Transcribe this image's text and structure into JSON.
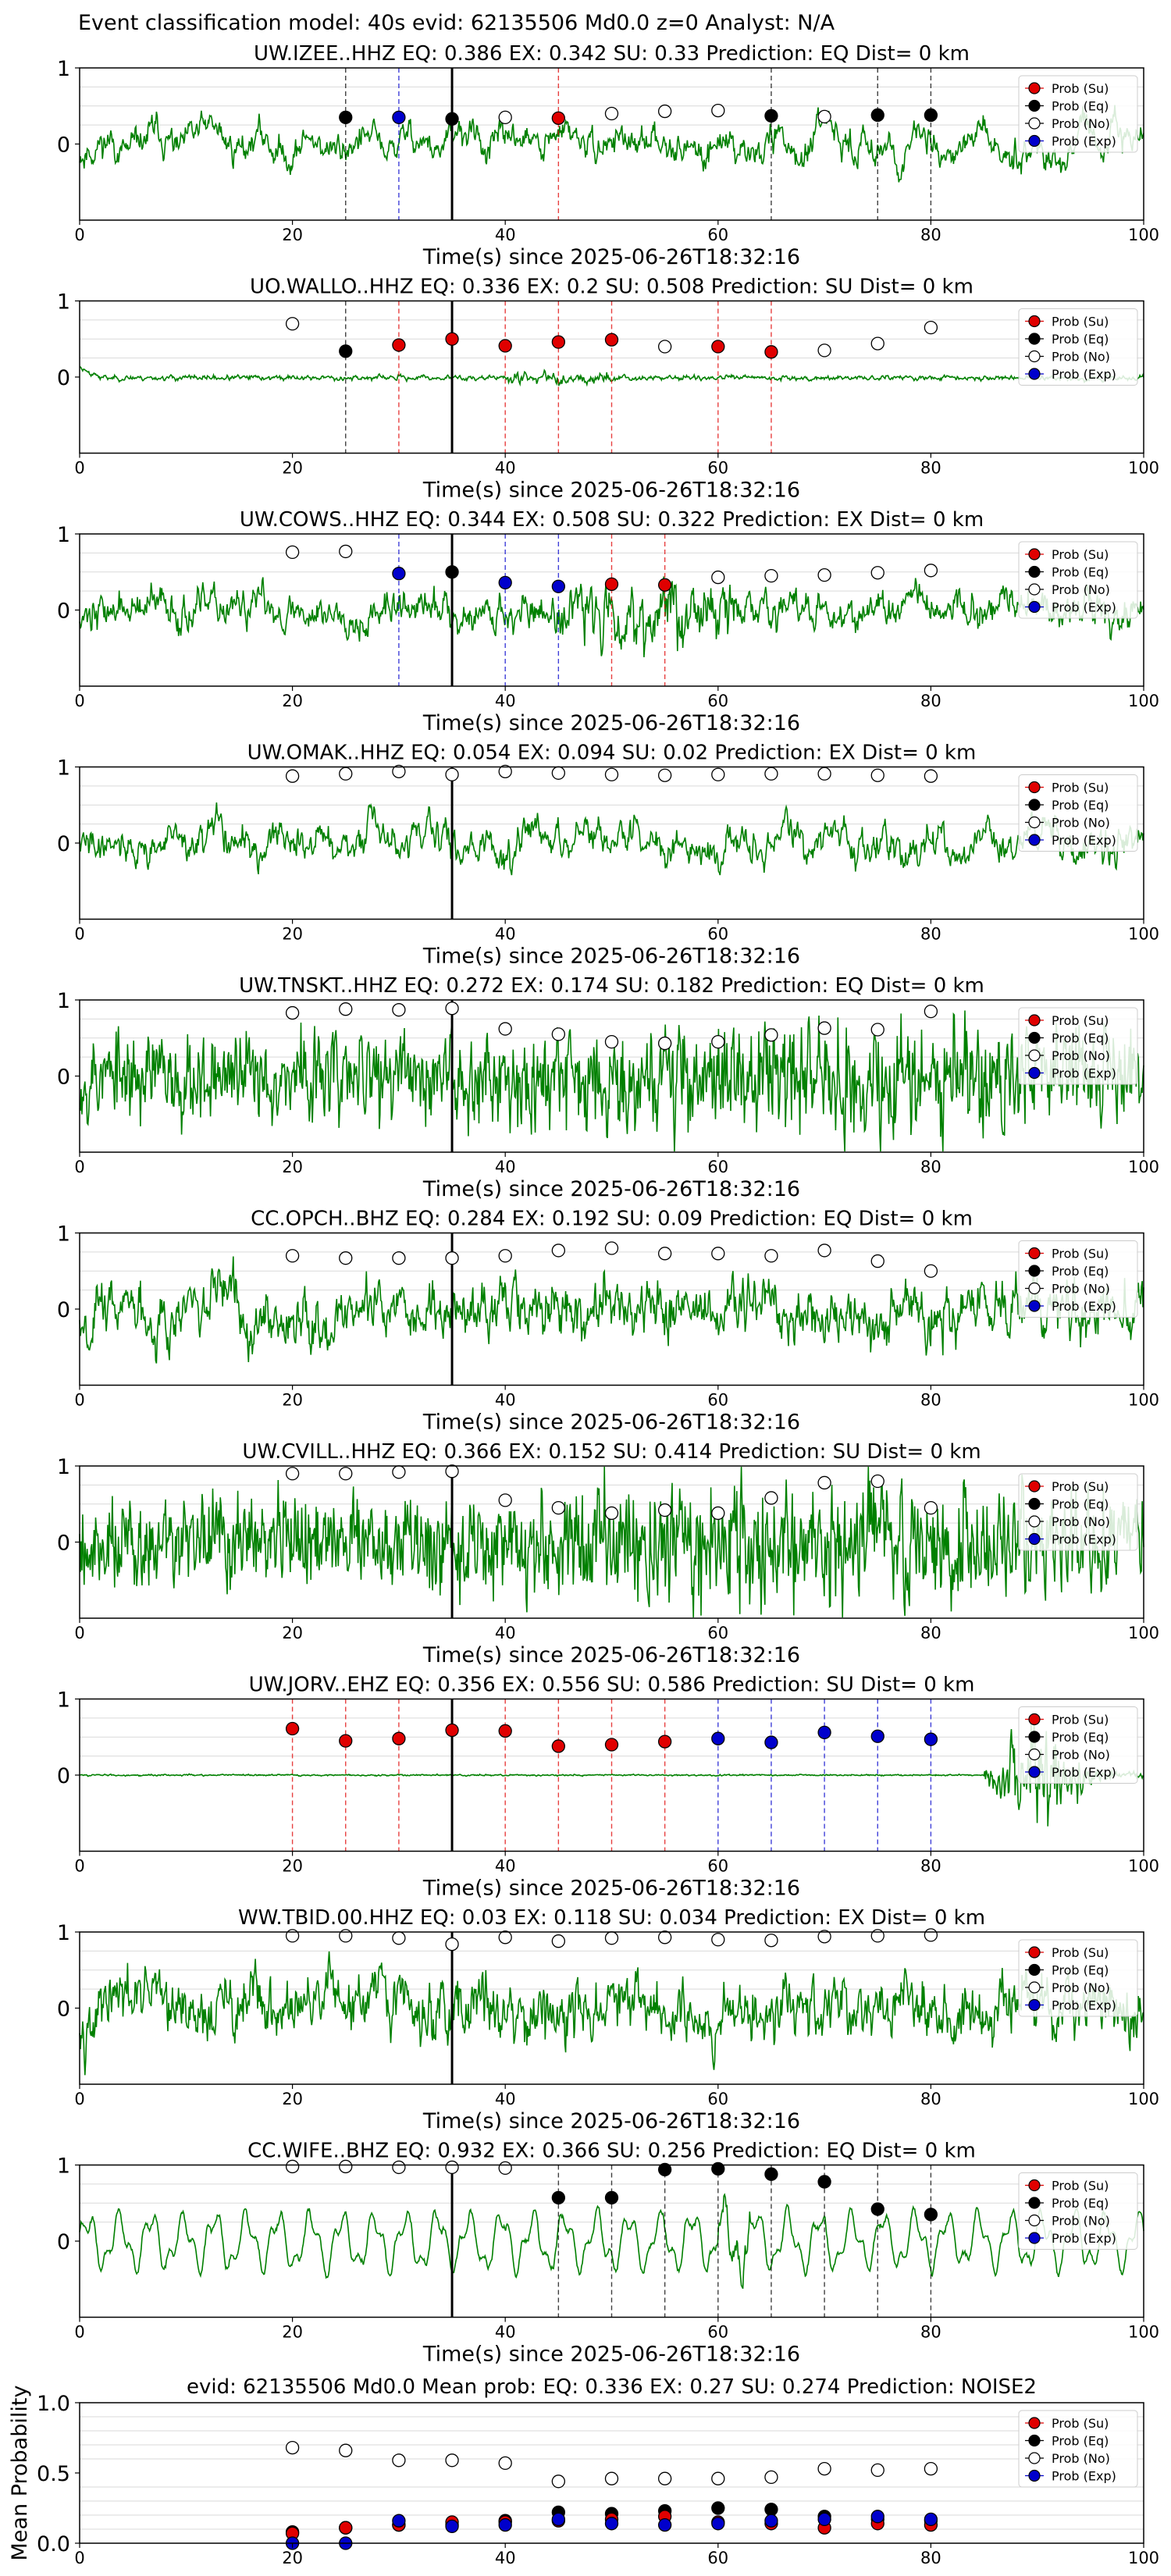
{
  "figure_title": "Event classification model: 40s evid: 62135506 Md0.0 z=0 Analyst: N/A",
  "colors": {
    "waveform": "#008000",
    "su": "#e00000",
    "eq": "#000000",
    "no": "#ffffff",
    "exp": "#0000cc",
    "grid": "#d9d9d9"
  },
  "legend_labels": [
    "Prob (Su)",
    "Prob (Eq)",
    "Prob (No)",
    "Prob (Exp)"
  ],
  "chart_data": [
    {
      "type": "scatter",
      "title": "UW.IZEE..HHZ   EQ: 0.386  EX: 0.342  SU: 0.33   Prediction: EQ    Dist= 0 km",
      "xlabel": "Time(s) since 2025-06-26T18:32:16",
      "xlim": [
        0,
        100
      ],
      "ylim": [
        -1,
        1
      ],
      "xticks": [
        "0",
        "20",
        "40",
        "60",
        "80",
        "100"
      ],
      "yticks": [
        "1",
        "0"
      ],
      "waveform": {
        "style": "lowfreq",
        "amplitude": 0.45,
        "seed": 11
      },
      "picks": [
        {
          "t": 25,
          "class": "eq",
          "p": 0.35
        },
        {
          "t": 30,
          "class": "exp",
          "p": 0.35
        },
        {
          "t": 35,
          "class": "eq",
          "p": 0.33
        },
        {
          "t": 40,
          "class": "no",
          "p": 0.35
        },
        {
          "t": 45,
          "class": "su",
          "p": 0.34
        },
        {
          "t": 50,
          "class": "no",
          "p": 0.4
        },
        {
          "t": 55,
          "class": "no",
          "p": 0.43
        },
        {
          "t": 60,
          "class": "no",
          "p": 0.44
        },
        {
          "t": 65,
          "class": "eq",
          "p": 0.37
        },
        {
          "t": 70,
          "class": "no",
          "p": 0.36
        },
        {
          "t": 75,
          "class": "eq",
          "p": 0.38
        },
        {
          "t": 80,
          "class": "eq",
          "p": 0.38
        }
      ]
    },
    {
      "type": "scatter",
      "title": "UO.WALLO..HHZ   EQ: 0.336  EX: 0.2  SU: 0.508   Prediction: SU    Dist= 0 km",
      "xlabel": "Time(s) since 2025-06-26T18:32:16",
      "xlim": [
        0,
        100
      ],
      "ylim": [
        -1,
        1
      ],
      "xticks": [
        "0",
        "20",
        "40",
        "60",
        "80",
        "100"
      ],
      "yticks": [
        "1",
        "0"
      ],
      "waveform": {
        "style": "lowamp",
        "amplitude": 0.2,
        "seed": 23
      },
      "picks": [
        {
          "t": 20,
          "class": "no",
          "p": 0.7
        },
        {
          "t": 25,
          "class": "eq",
          "p": 0.34
        },
        {
          "t": 30,
          "class": "su",
          "p": 0.42
        },
        {
          "t": 35,
          "class": "su",
          "p": 0.5
        },
        {
          "t": 40,
          "class": "su",
          "p": 0.41
        },
        {
          "t": 45,
          "class": "su",
          "p": 0.46
        },
        {
          "t": 50,
          "class": "su",
          "p": 0.49
        },
        {
          "t": 55,
          "class": "no",
          "p": 0.4
        },
        {
          "t": 60,
          "class": "su",
          "p": 0.4
        },
        {
          "t": 65,
          "class": "su",
          "p": 0.33
        },
        {
          "t": 70,
          "class": "no",
          "p": 0.35
        },
        {
          "t": 75,
          "class": "no",
          "p": 0.44
        },
        {
          "t": 80,
          "class": "no",
          "p": 0.65
        }
      ]
    },
    {
      "type": "scatter",
      "title": "UW.COWS..HHZ   EQ: 0.344  EX: 0.508  SU: 0.322   Prediction: EX    Dist= 0 km",
      "xlabel": "Time(s) since 2025-06-26T18:32:16",
      "xlim": [
        0,
        100
      ],
      "ylim": [
        -1,
        1
      ],
      "xticks": [
        "0",
        "20",
        "40",
        "60",
        "80",
        "100"
      ],
      "yticks": [
        "1",
        "0"
      ],
      "waveform": {
        "style": "burst",
        "amplitude": 0.5,
        "seed": 37
      },
      "picks": [
        {
          "t": 20,
          "class": "no",
          "p": 0.76
        },
        {
          "t": 25,
          "class": "no",
          "p": 0.77
        },
        {
          "t": 30,
          "class": "exp",
          "p": 0.48
        },
        {
          "t": 35,
          "class": "eq",
          "p": 0.5
        },
        {
          "t": 40,
          "class": "exp",
          "p": 0.36
        },
        {
          "t": 45,
          "class": "exp",
          "p": 0.31
        },
        {
          "t": 50,
          "class": "su",
          "p": 0.34
        },
        {
          "t": 55,
          "class": "su",
          "p": 0.33
        },
        {
          "t": 60,
          "class": "no",
          "p": 0.43
        },
        {
          "t": 65,
          "class": "no",
          "p": 0.45
        },
        {
          "t": 70,
          "class": "no",
          "p": 0.46
        },
        {
          "t": 75,
          "class": "no",
          "p": 0.49
        },
        {
          "t": 80,
          "class": "no",
          "p": 0.52
        }
      ]
    },
    {
      "type": "scatter",
      "title": "UW.OMAK..HHZ   EQ: 0.054  EX: 0.094  SU: 0.02   Prediction: EX    Dist= 0 km",
      "xlabel": "Time(s) since 2025-06-26T18:32:16",
      "xlim": [
        0,
        100
      ],
      "ylim": [
        -1,
        1
      ],
      "xticks": [
        "0",
        "20",
        "40",
        "60",
        "80",
        "100"
      ],
      "yticks": [
        "1",
        "0"
      ],
      "waveform": {
        "style": "lowfreq",
        "amplitude": 0.5,
        "seed": 41
      },
      "picks": [
        {
          "t": 20,
          "class": "no",
          "p": 0.88
        },
        {
          "t": 25,
          "class": "no",
          "p": 0.91
        },
        {
          "t": 30,
          "class": "no",
          "p": 0.94
        },
        {
          "t": 35,
          "class": "no",
          "p": 0.9
        },
        {
          "t": 40,
          "class": "no",
          "p": 0.94
        },
        {
          "t": 45,
          "class": "no",
          "p": 0.92
        },
        {
          "t": 50,
          "class": "no",
          "p": 0.9
        },
        {
          "t": 55,
          "class": "no",
          "p": 0.89
        },
        {
          "t": 60,
          "class": "no",
          "p": 0.9
        },
        {
          "t": 65,
          "class": "no",
          "p": 0.91
        },
        {
          "t": 70,
          "class": "no",
          "p": 0.91
        },
        {
          "t": 75,
          "class": "no",
          "p": 0.89
        },
        {
          "t": 80,
          "class": "no",
          "p": 0.88
        }
      ]
    },
    {
      "type": "scatter",
      "title": "UW.TNSKT..HHZ   EQ: 0.272  EX: 0.174  SU: 0.182   Prediction: EQ    Dist= 0 km",
      "xlabel": "Time(s) since 2025-06-26T18:32:16",
      "xlim": [
        0,
        100
      ],
      "ylim": [
        -1,
        1
      ],
      "xticks": [
        "0",
        "20",
        "40",
        "60",
        "80",
        "100"
      ],
      "yticks": [
        "1",
        "0"
      ],
      "waveform": {
        "style": "noise",
        "amplitude": 0.7,
        "seed": 53
      },
      "picks": [
        {
          "t": 20,
          "class": "no",
          "p": 0.83
        },
        {
          "t": 25,
          "class": "no",
          "p": 0.88
        },
        {
          "t": 30,
          "class": "no",
          "p": 0.87
        },
        {
          "t": 35,
          "class": "no",
          "p": 0.89
        },
        {
          "t": 40,
          "class": "no",
          "p": 0.62
        },
        {
          "t": 45,
          "class": "no",
          "p": 0.55
        },
        {
          "t": 50,
          "class": "no",
          "p": 0.45
        },
        {
          "t": 55,
          "class": "no",
          "p": 0.43
        },
        {
          "t": 60,
          "class": "no",
          "p": 0.45
        },
        {
          "t": 65,
          "class": "no",
          "p": 0.54
        },
        {
          "t": 70,
          "class": "no",
          "p": 0.63
        },
        {
          "t": 75,
          "class": "no",
          "p": 0.61
        },
        {
          "t": 80,
          "class": "no",
          "p": 0.85
        }
      ]
    },
    {
      "type": "scatter",
      "title": "CC.OPCH..BHZ   EQ: 0.284  EX: 0.192  SU: 0.09   Prediction: EQ    Dist= 0 km",
      "xlabel": "Time(s) since 2025-06-26T18:32:16",
      "xlim": [
        0,
        100
      ],
      "ylim": [
        -1,
        1
      ],
      "xticks": [
        "0",
        "20",
        "40",
        "60",
        "80",
        "100"
      ],
      "yticks": [
        "1",
        "0"
      ],
      "waveform": {
        "style": "mixed",
        "amplitude": 0.6,
        "seed": 67
      },
      "picks": [
        {
          "t": 20,
          "class": "no",
          "p": 0.7
        },
        {
          "t": 25,
          "class": "no",
          "p": 0.67
        },
        {
          "t": 30,
          "class": "no",
          "p": 0.67
        },
        {
          "t": 35,
          "class": "no",
          "p": 0.67
        },
        {
          "t": 40,
          "class": "no",
          "p": 0.7
        },
        {
          "t": 45,
          "class": "no",
          "p": 0.77
        },
        {
          "t": 50,
          "class": "no",
          "p": 0.8
        },
        {
          "t": 55,
          "class": "no",
          "p": 0.73
        },
        {
          "t": 60,
          "class": "no",
          "p": 0.73
        },
        {
          "t": 65,
          "class": "no",
          "p": 0.7
        },
        {
          "t": 70,
          "class": "no",
          "p": 0.77
        },
        {
          "t": 75,
          "class": "no",
          "p": 0.63
        },
        {
          "t": 80,
          "class": "no",
          "p": 0.5
        }
      ]
    },
    {
      "type": "scatter",
      "title": "UW.CVILL..HHZ   EQ: 0.366  EX: 0.152  SU: 0.414   Prediction: SU    Dist= 0 km",
      "xlabel": "Time(s) since 2025-06-26T18:32:16",
      "xlim": [
        0,
        100
      ],
      "ylim": [
        -1,
        1
      ],
      "xticks": [
        "0",
        "20",
        "40",
        "60",
        "80",
        "100"
      ],
      "yticks": [
        "1",
        "0"
      ],
      "waveform": {
        "style": "noise",
        "amplitude": 0.75,
        "seed": 79
      },
      "picks": [
        {
          "t": 20,
          "class": "no",
          "p": 0.9
        },
        {
          "t": 25,
          "class": "no",
          "p": 0.9
        },
        {
          "t": 30,
          "class": "no",
          "p": 0.92
        },
        {
          "t": 35,
          "class": "no",
          "p": 0.93
        },
        {
          "t": 40,
          "class": "no",
          "p": 0.55
        },
        {
          "t": 45,
          "class": "no",
          "p": 0.45
        },
        {
          "t": 50,
          "class": "no",
          "p": 0.38
        },
        {
          "t": 55,
          "class": "no",
          "p": 0.42
        },
        {
          "t": 60,
          "class": "no",
          "p": 0.38
        },
        {
          "t": 65,
          "class": "no",
          "p": 0.58
        },
        {
          "t": 70,
          "class": "no",
          "p": 0.78
        },
        {
          "t": 75,
          "class": "no",
          "p": 0.8
        },
        {
          "t": 80,
          "class": "no",
          "p": 0.45
        }
      ]
    },
    {
      "type": "scatter",
      "title": "UW.JORV..EHZ   EQ: 0.356  EX: 0.556  SU: 0.586   Prediction: SU    Dist= 0 km",
      "xlabel": "Time(s) since 2025-06-26T18:32:16",
      "xlim": [
        0,
        100
      ],
      "ylim": [
        -1,
        1
      ],
      "xticks": [
        "0",
        "20",
        "40",
        "60",
        "80",
        "100"
      ],
      "yticks": [
        "1",
        "0"
      ],
      "waveform": {
        "style": "quiet_burst",
        "amplitude": 0.9,
        "seed": 83
      },
      "picks": [
        {
          "t": 20,
          "class": "su",
          "p": 0.61
        },
        {
          "t": 25,
          "class": "su",
          "p": 0.45
        },
        {
          "t": 30,
          "class": "su",
          "p": 0.48
        },
        {
          "t": 35,
          "class": "su",
          "p": 0.59
        },
        {
          "t": 40,
          "class": "su",
          "p": 0.58
        },
        {
          "t": 45,
          "class": "su",
          "p": 0.38
        },
        {
          "t": 50,
          "class": "su",
          "p": 0.4
        },
        {
          "t": 55,
          "class": "su",
          "p": 0.44
        },
        {
          "t": 60,
          "class": "exp",
          "p": 0.48
        },
        {
          "t": 65,
          "class": "exp",
          "p": 0.43
        },
        {
          "t": 70,
          "class": "exp",
          "p": 0.56
        },
        {
          "t": 75,
          "class": "exp",
          "p": 0.51
        },
        {
          "t": 80,
          "class": "exp",
          "p": 0.47
        }
      ]
    },
    {
      "type": "scatter",
      "title": "WW.TBID.00.HHZ   EQ: 0.03  EX: 0.118  SU: 0.034   Prediction: EX    Dist= 0 km",
      "xlabel": "Time(s) since 2025-06-26T18:32:16",
      "xlim": [
        0,
        100
      ],
      "ylim": [
        -1,
        1
      ],
      "xticks": [
        "0",
        "20",
        "40",
        "60",
        "80",
        "100"
      ],
      "yticks": [
        "1",
        "0"
      ],
      "waveform": {
        "style": "mixed",
        "amplitude": 0.65,
        "seed": 97
      },
      "picks": [
        {
          "t": 20,
          "class": "no",
          "p": 0.95
        },
        {
          "t": 25,
          "class": "no",
          "p": 0.95
        },
        {
          "t": 30,
          "class": "no",
          "p": 0.92
        },
        {
          "t": 35,
          "class": "no",
          "p": 0.84
        },
        {
          "t": 40,
          "class": "no",
          "p": 0.93
        },
        {
          "t": 45,
          "class": "no",
          "p": 0.88
        },
        {
          "t": 50,
          "class": "no",
          "p": 0.92
        },
        {
          "t": 55,
          "class": "no",
          "p": 0.93
        },
        {
          "t": 60,
          "class": "no",
          "p": 0.9
        },
        {
          "t": 65,
          "class": "no",
          "p": 0.89
        },
        {
          "t": 70,
          "class": "no",
          "p": 0.94
        },
        {
          "t": 75,
          "class": "no",
          "p": 0.95
        },
        {
          "t": 80,
          "class": "no",
          "p": 0.96
        }
      ]
    },
    {
      "type": "scatter",
      "title": "CC.WIFE..BHZ   EQ: 0.932  EX: 0.366  SU: 0.256   Prediction: EQ    Dist= 0 km",
      "xlabel": "Time(s) since 2025-06-26T18:32:16",
      "xlim": [
        0,
        100
      ],
      "ylim": [
        -1,
        1
      ],
      "xticks": [
        "0",
        "20",
        "40",
        "60",
        "80",
        "100"
      ],
      "yticks": [
        "1",
        "0"
      ],
      "waveform": {
        "style": "wavy",
        "amplitude": 0.55,
        "seed": 101
      },
      "picks": [
        {
          "t": 20,
          "class": "no",
          "p": 0.98
        },
        {
          "t": 25,
          "class": "no",
          "p": 0.98
        },
        {
          "t": 30,
          "class": "no",
          "p": 0.97
        },
        {
          "t": 35,
          "class": "no",
          "p": 0.97
        },
        {
          "t": 40,
          "class": "no",
          "p": 0.96
        },
        {
          "t": 45,
          "class": "eq",
          "p": 0.57
        },
        {
          "t": 50,
          "class": "eq",
          "p": 0.57
        },
        {
          "t": 55,
          "class": "eq",
          "p": 0.94
        },
        {
          "t": 60,
          "class": "eq",
          "p": 0.95
        },
        {
          "t": 65,
          "class": "eq",
          "p": 0.88
        },
        {
          "t": 70,
          "class": "eq",
          "p": 0.78
        },
        {
          "t": 75,
          "class": "eq",
          "p": 0.42
        },
        {
          "t": 80,
          "class": "eq",
          "p": 0.35
        }
      ]
    },
    {
      "type": "scatter",
      "title": "evid: 62135506  Md0.0   Mean prob:   EQ: 0.336  EX: 0.27  SU: 0.274   Prediction: NOISE2",
      "ylabel": "Mean Probability",
      "xlim": [
        0,
        100
      ],
      "ylim": [
        0,
        1
      ],
      "xticks": [
        "0",
        "20",
        "40",
        "60",
        "80",
        "100"
      ],
      "yticks": [
        "0.0",
        "0.5",
        "1.0"
      ],
      "x": [
        20,
        25,
        30,
        35,
        40,
        45,
        50,
        55,
        60,
        65,
        70,
        75,
        80
      ],
      "series": [
        {
          "name": "Prob (No)",
          "key": "no",
          "values": [
            0.68,
            0.66,
            0.59,
            0.59,
            0.57,
            0.44,
            0.46,
            0.46,
            0.46,
            0.47,
            0.53,
            0.52,
            0.53
          ]
        },
        {
          "name": "Prob (Eq)",
          "key": "eq",
          "values": [
            0.08,
            0.11,
            0.13,
            0.13,
            0.16,
            0.22,
            0.21,
            0.23,
            0.25,
            0.24,
            0.19,
            0.17,
            0.16
          ]
        },
        {
          "name": "Prob (Su)",
          "key": "su",
          "values": [
            0.07,
            0.11,
            0.13,
            0.15,
            0.15,
            0.16,
            0.17,
            0.19,
            0.15,
            0.14,
            0.11,
            0.14,
            0.13
          ]
        },
        {
          "name": "Prob (Exp)",
          "key": "exp",
          "values": [
            0.0,
            0.0,
            0.16,
            0.12,
            0.13,
            0.17,
            0.14,
            0.13,
            0.14,
            0.16,
            0.17,
            0.19,
            0.17
          ]
        }
      ]
    }
  ]
}
